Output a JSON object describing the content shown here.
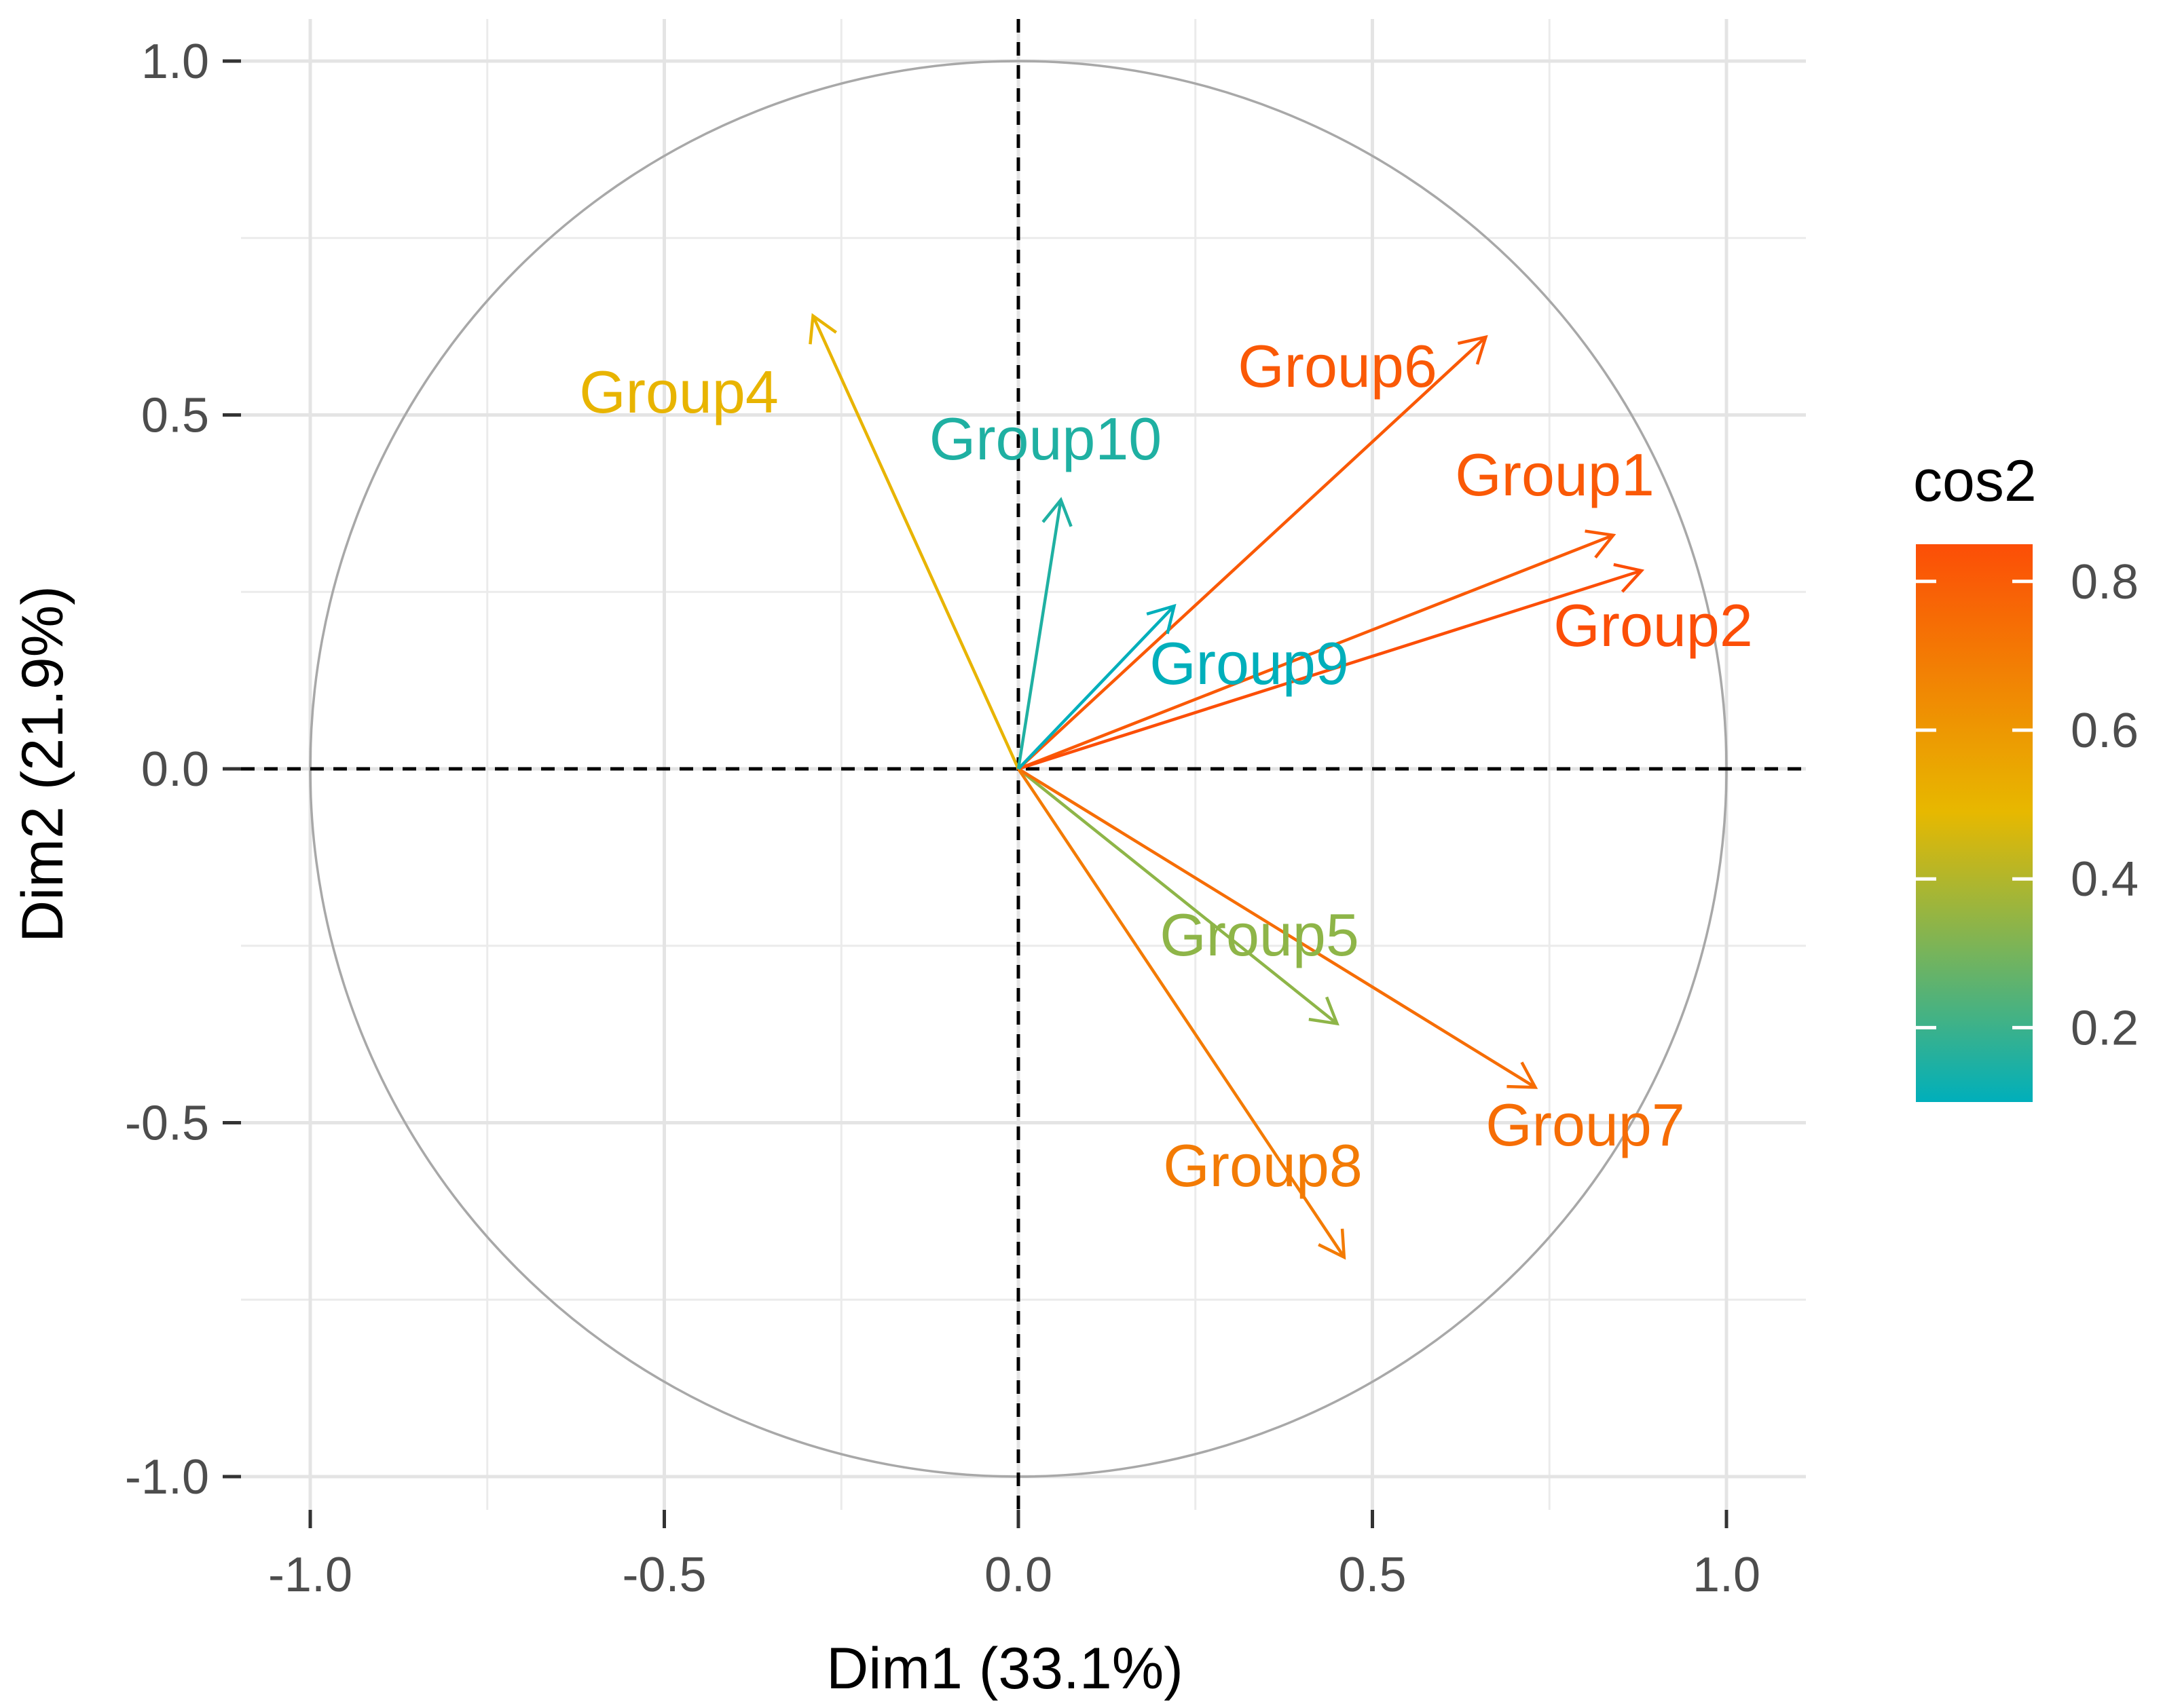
{
  "chart_data": {
    "type": "pca-variable-correlation-circle",
    "xlabel": "Dim1 (33.1%)",
    "ylabel": "Dim2 (21.9%)",
    "xlim": [
      -1.1,
      1.1
    ],
    "ylim": [
      -1.1,
      1.1
    ],
    "x_ticks": [
      -1.0,
      -0.5,
      0.0,
      0.5,
      1.0
    ],
    "y_ticks": [
      -1.0,
      -0.5,
      0.0,
      0.5,
      1.0
    ],
    "x_tick_labels": [
      "-1.0",
      "-0.5",
      "0.0",
      "0.5",
      "1.0"
    ],
    "y_tick_labels": [
      "-1.0",
      "-0.5",
      "0.0",
      "0.5",
      "1.0"
    ],
    "grid": true,
    "unit_circle": true,
    "legend": {
      "title": "cos2",
      "placement": "right",
      "range": [
        0.1,
        0.85
      ],
      "ticks": [
        0.2,
        0.4,
        0.6,
        0.8
      ],
      "tick_labels": [
        "0.2",
        "0.4",
        "0.6",
        "0.8"
      ]
    },
    "color_scale": [
      "#00AFBB",
      "#E7B800",
      "#FC4E07"
    ],
    "points": [
      {
        "name": "Group1",
        "x": 0.84,
        "y": 0.33,
        "cos2": 0.81
      },
      {
        "name": "Group2",
        "x": 0.88,
        "y": 0.28,
        "cos2": 0.85
      },
      {
        "name": "Group4",
        "x": -0.29,
        "y": 0.64,
        "cos2": 0.49
      },
      {
        "name": "Group5",
        "x": 0.45,
        "y": -0.36,
        "cos2": 0.33
      },
      {
        "name": "Group6",
        "x": 0.66,
        "y": 0.61,
        "cos2": 0.81
      },
      {
        "name": "Group7",
        "x": 0.73,
        "y": -0.45,
        "cos2": 0.74
      },
      {
        "name": "Group8",
        "x": 0.46,
        "y": -0.69,
        "cos2": 0.69
      },
      {
        "name": "Group9",
        "x": 0.22,
        "y": 0.23,
        "cos2": 0.1
      },
      {
        "name": "Group10",
        "x": 0.06,
        "y": 0.38,
        "cos2": 0.15
      }
    ]
  }
}
